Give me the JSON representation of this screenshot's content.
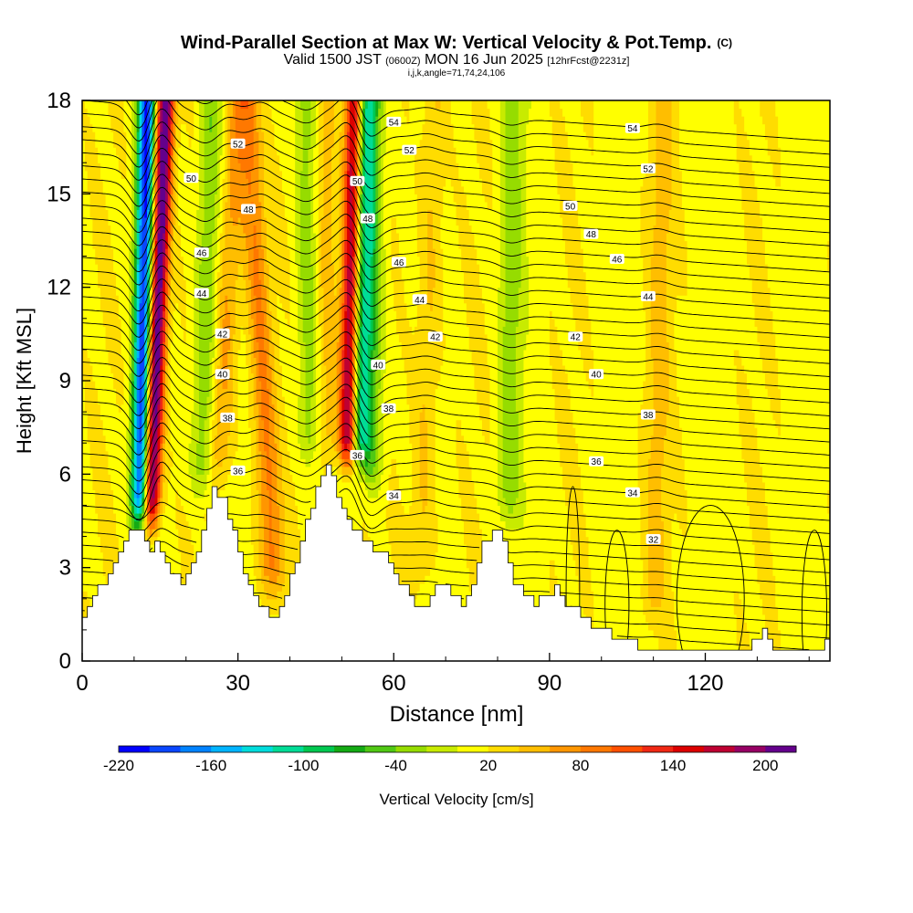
{
  "header": {
    "title": "Wind-Parallel Section at Max W: Vertical Velocity & Pot.Temp.",
    "title_mark": "(C)",
    "valid_prefix": "Valid 1500 JST",
    "valid_zulu": "(0600Z)",
    "valid_date": "MON 16 Jun 2025",
    "forecast_info": "[12hrFcst@2231z]",
    "grid_info": "i,j,k,angle=71,74,24,106"
  },
  "chart_data": {
    "type": "heatmap",
    "xlabel": "Distance [nm]",
    "ylabel": "Height [Kft MSL]",
    "xlim": [
      0,
      144
    ],
    "ylim": [
      0,
      18
    ],
    "x_ticks": [
      0,
      30,
      60,
      90,
      120
    ],
    "y_ticks": [
      0,
      3,
      6,
      9,
      12,
      15,
      18
    ],
    "colorbar": {
      "label": "Vertical Velocity [cm/s]",
      "tick_values": [
        -220,
        -160,
        -100,
        -40,
        20,
        80,
        140,
        200
      ],
      "range": [
        -220,
        220
      ],
      "colors": [
        "#0000ff",
        "#0a46ff",
        "#0082ff",
        "#00b4ff",
        "#00dcdc",
        "#00dc96",
        "#00c850",
        "#14aa14",
        "#50c814",
        "#96dc00",
        "#c8eb00",
        "#ffff00",
        "#ffdc00",
        "#ffbe00",
        "#ff9600",
        "#ff7800",
        "#ff5000",
        "#f02814",
        "#dc0000",
        "#be0032",
        "#960064",
        "#64008c"
      ]
    },
    "terrain_profile_kft": {
      "x": [
        0,
        2,
        4,
        6,
        8,
        10,
        12,
        13,
        14,
        15,
        17,
        19,
        21,
        23,
        25,
        27,
        29,
        31,
        33,
        35,
        37,
        39,
        41,
        43,
        45,
        47,
        49,
        51,
        53,
        55,
        57,
        59,
        61,
        63,
        65,
        67,
        69,
        71,
        73,
        75,
        77,
        79,
        81,
        83,
        85,
        87,
        89,
        91,
        93,
        95,
        97,
        99,
        101,
        103,
        105,
        107,
        109,
        111,
        115,
        120,
        125,
        128,
        131,
        133,
        136,
        140,
        144
      ],
      "h": [
        1.3,
        2.0,
        2.6,
        3.2,
        3.8,
        4.3,
        4.0,
        3.4,
        3.8,
        3.5,
        2.9,
        2.5,
        3.1,
        4.2,
        5.6,
        5.2,
        4.1,
        2.8,
        2.1,
        1.6,
        1.4,
        2.2,
        3.1,
        4.4,
        5.6,
        6.2,
        5.4,
        4.4,
        4.3,
        3.7,
        3.6,
        3.3,
        2.6,
        2.0,
        1.7,
        2.1,
        2.6,
        2.2,
        1.8,
        2.5,
        3.7,
        4.3,
        3.8,
        2.6,
        2.0,
        1.9,
        2.0,
        2.3,
        1.9,
        1.6,
        1.3,
        1.1,
        0.9,
        0.8,
        0.7,
        0.5,
        0.4,
        0.35,
        0.35,
        0.35,
        0.35,
        0.35,
        1.0,
        0.4,
        0.35,
        0.35,
        0.6
      ]
    },
    "updraft_columns": [
      {
        "x_base": 13,
        "x_top": 16,
        "base_kft": 4.0,
        "max_cm_s": 220
      },
      {
        "x_base": 51,
        "x_top": 52.5,
        "base_kft": 6.0,
        "max_cm_s": 200
      },
      {
        "x_base": 37,
        "x_top": 32,
        "base_kft": 1.8,
        "max_cm_s": 70
      },
      {
        "x_base": 26,
        "x_top": 30,
        "base_kft": 5.5,
        "max_cm_s": 50
      },
      {
        "x_base": 47,
        "x_top": 47,
        "base_kft": 6.0,
        "max_cm_s": 40
      },
      {
        "x_base": 65,
        "x_top": 68,
        "base_kft": 2.0,
        "max_cm_s": 30
      },
      {
        "x_base": 110,
        "x_top": 112,
        "base_kft": 1.0,
        "max_cm_s": 30
      }
    ],
    "downdraft_columns": [
      {
        "x_base": 11,
        "x_top": 12.5,
        "base_kft": 4.0,
        "min_cm_s": -220
      },
      {
        "x_base": 53.5,
        "x_top": 54.5,
        "base_kft": 6.0,
        "min_cm_s": -120
      },
      {
        "x_base": 23,
        "x_top": 25,
        "base_kft": 5.0,
        "min_cm_s": -55
      },
      {
        "x_base": 44,
        "x_top": 43,
        "base_kft": 6.0,
        "min_cm_s": -50
      },
      {
        "x_base": 56,
        "x_top": 56,
        "base_kft": 5.0,
        "min_cm_s": -45
      },
      {
        "x_base": 82,
        "x_top": 83,
        "base_kft": 4.0,
        "min_cm_s": -45
      }
    ],
    "isentrope_labels": [
      {
        "value": "54",
        "x": 60,
        "y": 17.3
      },
      {
        "value": "54",
        "x": 106,
        "y": 17.1
      },
      {
        "value": "52",
        "x": 30,
        "y": 16.6
      },
      {
        "value": "52",
        "x": 63,
        "y": 16.4
      },
      {
        "value": "52",
        "x": 109,
        "y": 15.8
      },
      {
        "value": "50",
        "x": 21,
        "y": 15.5
      },
      {
        "value": "50",
        "x": 53,
        "y": 15.4
      },
      {
        "value": "50",
        "x": 94,
        "y": 14.6
      },
      {
        "value": "48",
        "x": 32,
        "y": 14.5
      },
      {
        "value": "48",
        "x": 55,
        "y": 14.2
      },
      {
        "value": "48",
        "x": 98,
        "y": 13.7
      },
      {
        "value": "46",
        "x": 23,
        "y": 13.1
      },
      {
        "value": "46",
        "x": 61,
        "y": 12.8
      },
      {
        "value": "46",
        "x": 103,
        "y": 12.9
      },
      {
        "value": "44",
        "x": 23,
        "y": 11.8
      },
      {
        "value": "44",
        "x": 65,
        "y": 11.6
      },
      {
        "value": "44",
        "x": 109,
        "y": 11.7
      },
      {
        "value": "42",
        "x": 27,
        "y": 10.5
      },
      {
        "value": "42",
        "x": 68,
        "y": 10.4
      },
      {
        "value": "42",
        "x": 95,
        "y": 10.4
      },
      {
        "value": "40",
        "x": 27,
        "y": 9.2
      },
      {
        "value": "40",
        "x": 57,
        "y": 9.5
      },
      {
        "value": "40",
        "x": 99,
        "y": 9.2
      },
      {
        "value": "38",
        "x": 28,
        "y": 7.8
      },
      {
        "value": "38",
        "x": 59,
        "y": 8.1
      },
      {
        "value": "38",
        "x": 109,
        "y": 7.9
      },
      {
        "value": "36",
        "x": 30,
        "y": 6.1
      },
      {
        "value": "36",
        "x": 53,
        "y": 6.6
      },
      {
        "value": "36",
        "x": 99,
        "y": 6.4
      },
      {
        "value": "34",
        "x": 60,
        "y": 5.3
      },
      {
        "value": "34",
        "x": 106,
        "y": 5.4
      },
      {
        "value": "32",
        "x": 110,
        "y": 3.9
      }
    ]
  }
}
